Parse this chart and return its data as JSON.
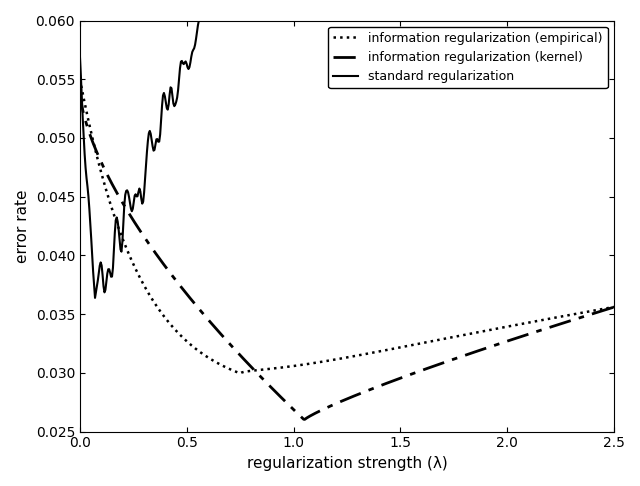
{
  "title": "",
  "xlabel": "regularization strength (λ)",
  "ylabel": "error rate",
  "xlim": [
    0,
    2.5
  ],
  "ylim": [
    0.025,
    0.06
  ],
  "yticks": [
    0.025,
    0.03,
    0.035,
    0.04,
    0.045,
    0.05,
    0.055,
    0.06
  ],
  "xticks": [
    0,
    0.5,
    1,
    1.5,
    2,
    2.5
  ],
  "legend_labels": [
    "information regularization (empirical)",
    "information regularization (kernel)",
    "standard regularization"
  ],
  "line_color": "#000000",
  "background_color": "#ffffff",
  "figsize": [
    6.4,
    4.86
  ],
  "dpi": 100
}
